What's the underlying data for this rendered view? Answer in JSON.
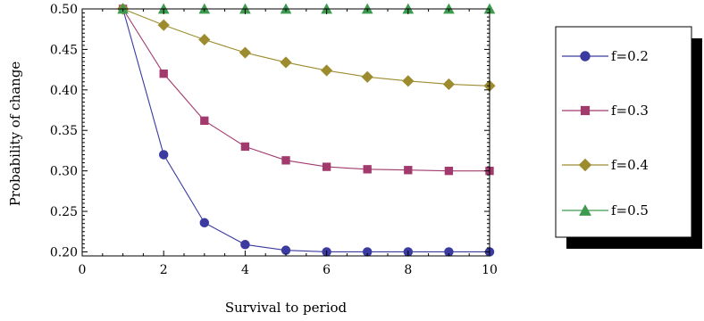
{
  "chart_data": {
    "type": "line",
    "xlabel": "Survival to period",
    "ylabel": "Probability of change",
    "xlim": [
      0,
      10
    ],
    "ylim": [
      0.195,
      0.5
    ],
    "xticks": [
      0,
      2,
      4,
      6,
      8,
      10
    ],
    "xtick_labels": [
      "0",
      "2",
      "4",
      "6",
      "8",
      "10"
    ],
    "yticks": [
      0.2,
      0.25,
      0.3,
      0.35,
      0.4,
      0.45,
      0.5
    ],
    "ytick_labels": [
      "0.20",
      "0.25",
      "0.30",
      "0.35",
      "0.40",
      "0.45",
      "0.50"
    ],
    "grid": false,
    "legend_position": "right",
    "x": [
      1,
      2,
      3,
      4,
      5,
      6,
      7,
      8,
      9,
      10
    ],
    "series": [
      {
        "name": "f=0.2",
        "color": "#3a3aa0",
        "marker": "circle",
        "values": [
          0.5,
          0.32,
          0.236,
          0.209,
          0.202,
          0.2,
          0.2,
          0.2,
          0.2,
          0.2
        ]
      },
      {
        "name": "f=0.3",
        "color": "#a33a6e",
        "marker": "square",
        "values": [
          0.5,
          0.42,
          0.362,
          0.33,
          0.313,
          0.305,
          0.302,
          0.301,
          0.3,
          0.3
        ]
      },
      {
        "name": "f=0.4",
        "color": "#9c8c2e",
        "marker": "diamond",
        "values": [
          0.5,
          0.48,
          0.462,
          0.446,
          0.434,
          0.424,
          0.416,
          0.411,
          0.407,
          0.405
        ]
      },
      {
        "name": "f=0.5",
        "color": "#3d9a4e",
        "marker": "triangle",
        "values": [
          0.5,
          0.5,
          0.5,
          0.5,
          0.5,
          0.5,
          0.5,
          0.5,
          0.5,
          0.5
        ]
      }
    ]
  }
}
